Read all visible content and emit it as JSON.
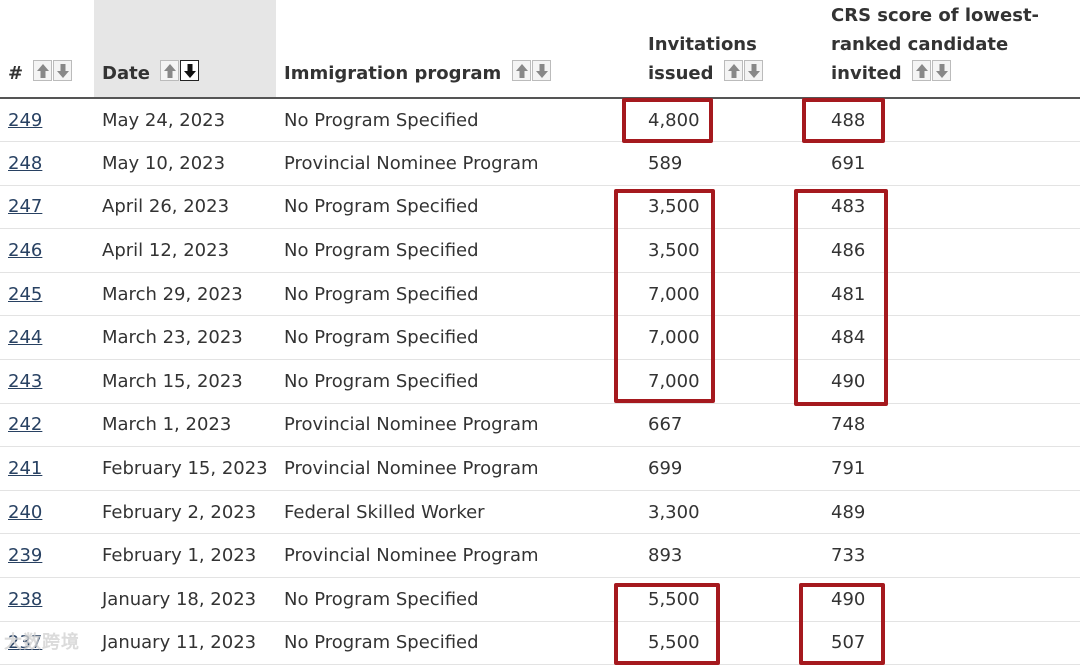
{
  "headers": {
    "num": "#",
    "date": "Date",
    "program": "Immigration program",
    "invitations": [
      "Invitations",
      "issued"
    ],
    "crs": [
      "CRS score of lowest-",
      "ranked candidate",
      "invited"
    ]
  },
  "sort": {
    "active_column": "date",
    "direction": "descending"
  },
  "icons": {
    "sort_up": "arrow-up-icon",
    "sort_down": "arrow-down-icon"
  },
  "colors": {
    "highlight": "#a5191e",
    "link": "#284162"
  },
  "rows": [
    {
      "num": "249",
      "date": "May 24, 2023",
      "program": "No Program Specified",
      "invitations": "4,800",
      "crs": "488"
    },
    {
      "num": "248",
      "date": "May 10, 2023",
      "program": "Provincial Nominee Program",
      "invitations": "589",
      "crs": "691"
    },
    {
      "num": "247",
      "date": "April 26, 2023",
      "program": "No Program Specified",
      "invitations": "3,500",
      "crs": "483"
    },
    {
      "num": "246",
      "date": "April 12, 2023",
      "program": "No Program Specified",
      "invitations": "3,500",
      "crs": "486"
    },
    {
      "num": "245",
      "date": "March 29, 2023",
      "program": "No Program Specified",
      "invitations": "7,000",
      "crs": "481"
    },
    {
      "num": "244",
      "date": "March 23, 2023",
      "program": "No Program Specified",
      "invitations": "7,000",
      "crs": "484"
    },
    {
      "num": "243",
      "date": "March 15, 2023",
      "program": "No Program Specified",
      "invitations": "7,000",
      "crs": "490"
    },
    {
      "num": "242",
      "date": "March 1, 2023",
      "program": "Provincial Nominee Program",
      "invitations": "667",
      "crs": "748"
    },
    {
      "num": "241",
      "date": "February 15, 2023",
      "program": "Provincial Nominee Program",
      "invitations": "699",
      "crs": "791"
    },
    {
      "num": "240",
      "date": "February 2, 2023",
      "program": "Federal Skilled Worker",
      "invitations": "3,300",
      "crs": "489"
    },
    {
      "num": "239",
      "date": "February 1, 2023",
      "program": "Provincial Nominee Program",
      "invitations": "893",
      "crs": "733"
    },
    {
      "num": "238",
      "date": "January 18, 2023",
      "program": "No Program Specified",
      "invitations": "5,500",
      "crs": "490"
    },
    {
      "num": "237",
      "date": "January 11, 2023",
      "program": "No Program Specified",
      "invitations": "5,500",
      "crs": "507"
    }
  ],
  "watermark": "大数跨境"
}
